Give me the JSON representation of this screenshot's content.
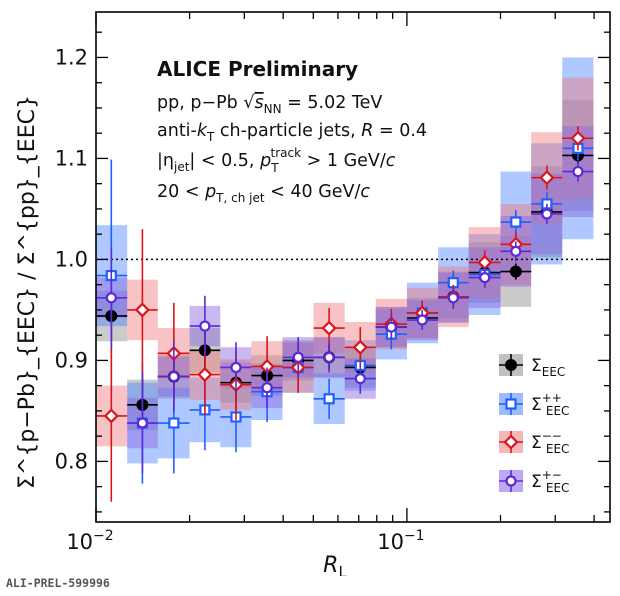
{
  "chart_data": {
    "type": "scatter",
    "x_scale": "log",
    "xlim": [
      0.01,
      0.45
    ],
    "ylim": [
      0.74,
      1.245
    ],
    "xlabel": "R",
    "xlabel_sub": "L",
    "ylabel": "Σ^{p−Pb}_{EEC} / Σ^{pp}_{EEC}",
    "x_ticks": [
      {
        "value": 0.01,
        "base": "10",
        "exp": "−2"
      },
      {
        "value": 0.1,
        "base": "10",
        "exp": "−1"
      }
    ],
    "y_ticks": [
      0.8,
      0.9,
      1.0,
      1.1,
      1.2
    ],
    "reference_line": 1.0,
    "annotations": {
      "title": "ALICE Preliminary",
      "line1_pre": "pp, p−Pb ",
      "line1_sqrt": "√",
      "line1_var": "s",
      "line1_sub": "NN",
      "line1_post": " =  5.02 TeV",
      "line2_pre": "anti-",
      "line2_k": "k",
      "line2_ksub": "T",
      "line2_post": " ch-particle jets, ",
      "line2_R": "R",
      "line2_Rval": " = 0.4",
      "line3_eta": "|η",
      "line3_etasub": "jet",
      "line3_mid": "| < 0.5,  ",
      "line3_p": "p",
      "line3_psub": "T",
      "line3_psup": "track",
      "line3_post": " > 1 GeV/",
      "line3_c": "c",
      "line4_pre": "20 < ",
      "line4_p": "p",
      "line4_sub": "T, ch jet",
      "line4_post": " < 40 GeV/",
      "line4_c": "c"
    },
    "bin_edges": [
      0.01,
      0.0126,
      0.0158,
      0.02,
      0.0251,
      0.0316,
      0.0398,
      0.0501,
      0.0631,
      0.0794,
      0.1,
      0.126,
      0.158,
      0.2,
      0.251,
      0.316,
      0.398
    ],
    "series": [
      {
        "name": "Σ",
        "sub": "EEC",
        "sup": "",
        "color": "#000000",
        "band_color": "#8c8c8c",
        "marker": "filled-circle",
        "x": [
          0.0112,
          0.0141,
          0.0178,
          0.0224,
          0.0282,
          0.0355,
          0.0447,
          0.0562,
          0.0708,
          0.0891,
          0.112,
          0.141,
          0.178,
          0.224,
          0.282,
          0.355
        ],
        "y": [
          0.944,
          0.856,
          0.884,
          0.91,
          0.878,
          0.885,
          0.9,
          0.903,
          0.893,
          0.933,
          0.942,
          0.963,
          0.987,
          0.988,
          1.047,
          1.103
        ],
        "err": [
          0.025,
          0.025,
          0.022,
          0.02,
          0.018,
          0.015,
          0.013,
          0.012,
          0.012,
          0.01,
          0.009,
          0.009,
          0.008,
          0.008,
          0.008,
          0.008
        ],
        "sys": [
          0.025,
          0.025,
          0.022,
          0.022,
          0.02,
          0.02,
          0.02,
          0.02,
          0.02,
          0.02,
          0.02,
          0.025,
          0.03,
          0.035,
          0.045,
          0.055
        ]
      },
      {
        "name": "Σ",
        "sub": "EEC",
        "sup": "++",
        "color": "#1f5fff",
        "band_color": "#4d85ff",
        "marker": "open-square",
        "x": [
          0.0112,
          0.0141,
          0.0178,
          0.0224,
          0.0282,
          0.0355,
          0.0447,
          0.0562,
          0.0708,
          0.0891,
          0.112,
          0.141,
          0.178,
          0.224,
          0.282,
          0.355
        ],
        "y": [
          0.984,
          0.838,
          0.838,
          0.851,
          0.844,
          0.869,
          0.893,
          0.862,
          0.895,
          0.926,
          0.947,
          0.977,
          0.985,
          1.037,
          1.055,
          1.11
        ],
        "err": [
          0.115,
          0.06,
          0.05,
          0.04,
          0.035,
          0.03,
          0.025,
          0.02,
          0.02,
          0.015,
          0.012,
          0.012,
          0.012,
          0.012,
          0.012,
          0.012
        ],
        "sys": [
          0.05,
          0.04,
          0.035,
          0.032,
          0.03,
          0.028,
          0.025,
          0.025,
          0.025,
          0.025,
          0.03,
          0.035,
          0.04,
          0.05,
          0.06,
          0.09
        ]
      },
      {
        "name": "Σ",
        "sub": "EEC",
        "sup": "−−",
        "color": "#d9141b",
        "band_color": "#f07a7e",
        "marker": "open-diamond",
        "x": [
          0.0112,
          0.0141,
          0.0178,
          0.0224,
          0.0282,
          0.0355,
          0.0447,
          0.0562,
          0.0708,
          0.0891,
          0.112,
          0.141,
          0.178,
          0.224,
          0.282,
          0.355
        ],
        "y": [
          0.845,
          0.95,
          0.907,
          0.886,
          0.876,
          0.894,
          0.893,
          0.932,
          0.913,
          0.936,
          0.947,
          0.963,
          0.997,
          1.015,
          1.081,
          1.12
        ],
        "err": [
          0.085,
          0.08,
          0.05,
          0.04,
          0.035,
          0.03,
          0.025,
          0.02,
          0.02,
          0.015,
          0.012,
          0.012,
          0.012,
          0.012,
          0.012,
          0.012
        ],
        "sys": [
          0.03,
          0.03,
          0.025,
          0.025,
          0.025,
          0.025,
          0.025,
          0.025,
          0.025,
          0.025,
          0.025,
          0.03,
          0.035,
          0.04,
          0.045,
          0.06
        ]
      },
      {
        "name": "Σ",
        "sub": "EEC",
        "sup": "+−",
        "color": "#5b2ad6",
        "band_color": "#8a63e0",
        "marker": "open-circle",
        "x": [
          0.0112,
          0.0141,
          0.0178,
          0.0224,
          0.0282,
          0.0355,
          0.0447,
          0.0562,
          0.0708,
          0.0891,
          0.112,
          0.141,
          0.178,
          0.224,
          0.282,
          0.355
        ],
        "y": [
          0.962,
          0.838,
          0.884,
          0.934,
          0.893,
          0.873,
          0.903,
          0.903,
          0.882,
          0.933,
          0.94,
          0.962,
          0.982,
          1.008,
          1.045,
          1.087
        ],
        "err": [
          0.05,
          0.05,
          0.035,
          0.03,
          0.025,
          0.02,
          0.02,
          0.015,
          0.015,
          0.012,
          0.01,
          0.01,
          0.01,
          0.01,
          0.01,
          0.01
        ],
        "sys": [
          0.02,
          0.025,
          0.02,
          0.02,
          0.02,
          0.02,
          0.02,
          0.02,
          0.02,
          0.02,
          0.02,
          0.025,
          0.03,
          0.035,
          0.04,
          0.045
        ]
      }
    ]
  },
  "footer": "ALI-PREL-599996"
}
